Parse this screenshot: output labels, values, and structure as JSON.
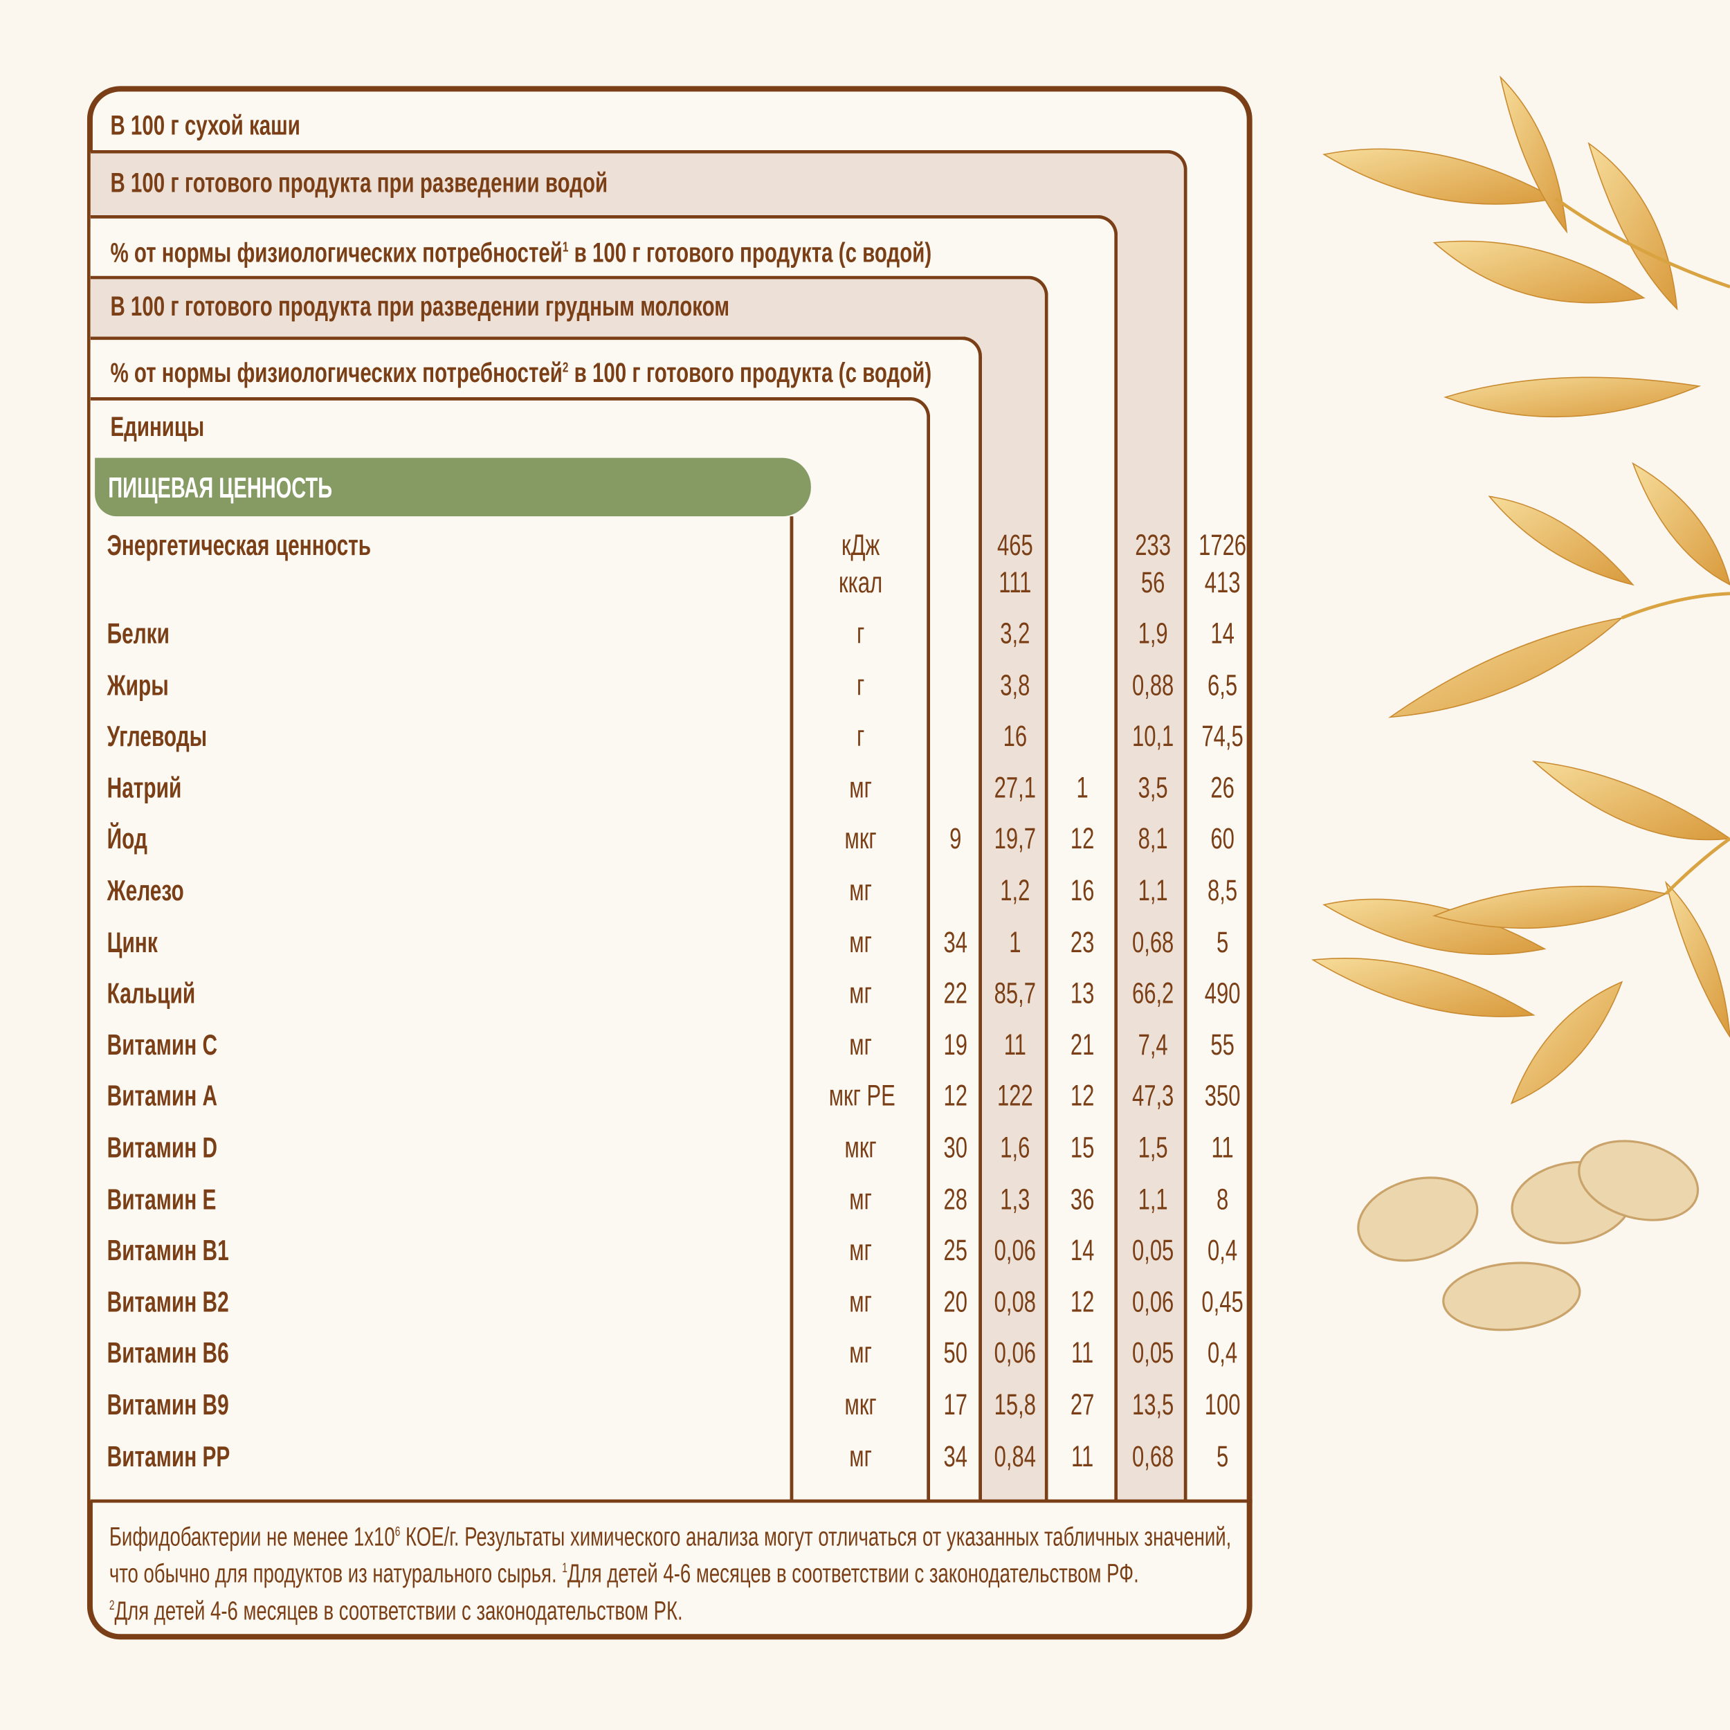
{
  "headers": {
    "dry": "В 100 г сухой каши",
    "water": "В 100 г готового продукта при разведении водой",
    "pct1_pre": "% от нормы физиологических потребностей",
    "pct1_sup": "1",
    "pct1_post": " в 100 г готового продукта (с водой)",
    "milk": "В 100 г готового продукта при разведении грудным молоком",
    "pct2_pre": "% от нормы физиологических потребностей",
    "pct2_sup": "2",
    "pct2_post": " в 100 г готового продукта (с водой)",
    "units": "Единицы"
  },
  "section_title": "ПИЩЕВАЯ ЦЕННОСТЬ",
  "energy": {
    "name": "Энергетическая ценность",
    "units": [
      "кДж",
      "ккал"
    ],
    "milk": [
      "465",
      "111"
    ],
    "water": [
      "233",
      "56"
    ],
    "dry": [
      "1726",
      "413"
    ]
  },
  "rows": [
    {
      "name": "Белки",
      "unit": "г",
      "pct2": "",
      "milk": "3,2",
      "pct1": "",
      "water": "1,9",
      "dry": "14"
    },
    {
      "name": "Жиры",
      "unit": "г",
      "pct2": "",
      "milk": "3,8",
      "pct1": "",
      "water": "0,88",
      "dry": "6,5"
    },
    {
      "name": "Углеводы",
      "unit": "г",
      "pct2": "",
      "milk": "16",
      "pct1": "",
      "water": "10,1",
      "dry": "74,5"
    },
    {
      "name": "Натрий",
      "unit": "мг",
      "pct2": "",
      "milk": "27,1",
      "pct1": "1",
      "water": "3,5",
      "dry": "26"
    },
    {
      "name": "Йод",
      "unit": "мкг",
      "pct2": "9",
      "milk": "19,7",
      "pct1": "12",
      "water": "8,1",
      "dry": "60"
    },
    {
      "name": "Железо",
      "unit": "мг",
      "pct2": "",
      "milk": "1,2",
      "pct1": "16",
      "water": "1,1",
      "dry": "8,5"
    },
    {
      "name": "Цинк",
      "unit": "мг",
      "pct2": "34",
      "milk": "1",
      "pct1": "23",
      "water": "0,68",
      "dry": "5"
    },
    {
      "name": "Кальций",
      "unit": "мг",
      "pct2": "22",
      "milk": "85,7",
      "pct1": "13",
      "water": "66,2",
      "dry": "490"
    },
    {
      "name": "Витамин С",
      "unit": "мг",
      "pct2": "19",
      "milk": "11",
      "pct1": "21",
      "water": "7,4",
      "dry": "55"
    },
    {
      "name": "Витамин А",
      "unit": "мкг РЕ",
      "pct2": "12",
      "milk": "122",
      "pct1": "12",
      "water": "47,3",
      "dry": "350"
    },
    {
      "name": "Витамин D",
      "unit": "мкг",
      "pct2": "30",
      "milk": "1,6",
      "pct1": "15",
      "water": "1,5",
      "dry": "11"
    },
    {
      "name": "Витамин Е",
      "unit": "мг",
      "pct2": "28",
      "milk": "1,3",
      "pct1": "36",
      "water": "1,1",
      "dry": "8"
    },
    {
      "name": "Витамин В1",
      "unit": "мг",
      "pct2": "25",
      "milk": "0,06",
      "pct1": "14",
      "water": "0,05",
      "dry": "0,4"
    },
    {
      "name": "Витамин В2",
      "unit": "мг",
      "pct2": "20",
      "milk": "0,08",
      "pct1": "12",
      "water": "0,06",
      "dry": "0,45"
    },
    {
      "name": "Витамин В6",
      "unit": "мг",
      "pct2": "50",
      "milk": "0,06",
      "pct1": "11",
      "water": "0,05",
      "dry": "0,4"
    },
    {
      "name": "Витамин В9",
      "unit": "мкг",
      "pct2": "17",
      "milk": "15,8",
      "pct1": "27",
      "water": "13,5",
      "dry": "100"
    },
    {
      "name": "Витамин РР",
      "unit": "мг",
      "pct2": "34",
      "milk": "0,84",
      "pct1": "11",
      "water": "0,68",
      "dry": "5"
    }
  ],
  "footnote": {
    "l1_pre": "Бифидобактерии не менее 1x10",
    "l1_sup": "6",
    "l1_post": " КОЕ/г. Результаты химического анализа могут отличаться от указанных табличных значений,",
    "l2_pre": "что обычно для продуктов из натурального сырья. ",
    "l2_sup": "1",
    "l2_post": "Для детей 4-6 месяцев в соответствии с законодательством РФ.",
    "l3_sup": "2",
    "l3_post": "Для детей 4-6 месяцев в соответствии с законодательством РК."
  },
  "colors": {
    "brown": "#7a3f16",
    "shade": "#ede1d7",
    "green": "#869a64",
    "background": "#fbf7ef"
  },
  "decoration": "oat-spikelets-and-flakes-illustration"
}
